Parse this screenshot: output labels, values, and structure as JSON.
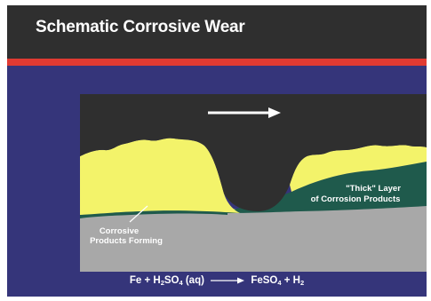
{
  "title": "Schematic Corrosive Wear",
  "labels": {
    "thick_layer_line1": "\"Thick\" Layer",
    "thick_layer_line2": "of Corrosion Products",
    "forming_line1": "Corrosive",
    "forming_line2": "Products Forming"
  },
  "equation": {
    "fe": "Fe + H",
    "h2so4_sub": "2",
    "so4": "SO",
    "so4_sub": "4",
    "aq": " (aq)",
    "feso4": "FeSO",
    "feso4_sub": "4",
    "plus_h": " + H",
    "h2_sub": "2"
  },
  "colors": {
    "slide_background": "#35357a",
    "title_band": "#2f2f2f",
    "accent_bar": "#e03a32",
    "counterface": "#2f2f2f",
    "corrosion_product_thick": "#1f5a4c",
    "corrosion_product_forming": "#f3f36a",
    "substrate": "#a8a8a8",
    "label_text": "#ffffff"
  },
  "icons": {
    "sliding_direction": "right-arrow-icon",
    "reaction_arrow": "right-arrow-icon"
  }
}
